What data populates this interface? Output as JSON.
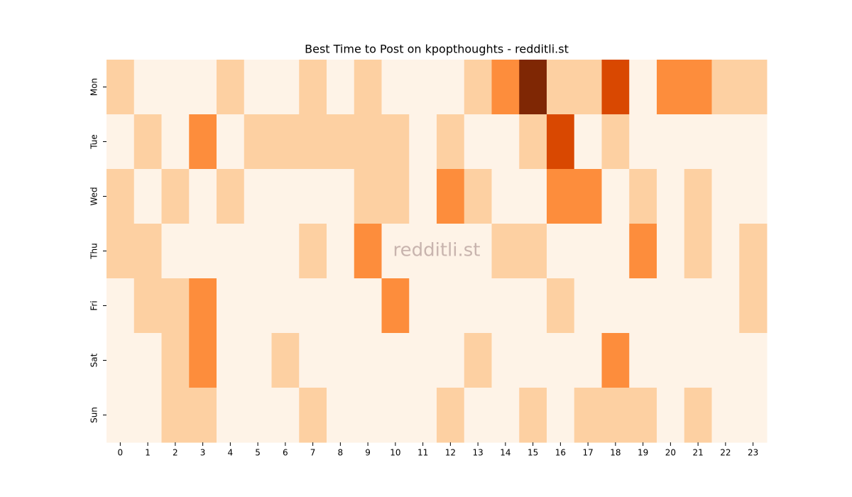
{
  "chart_data": {
    "type": "heatmap",
    "title": "Best Time to Post on kpopthoughts - redditli.st",
    "watermark": "redditli.st",
    "categories": [
      0,
      1,
      2,
      3,
      4,
      5,
      6,
      7,
      8,
      9,
      10,
      11,
      12,
      13,
      14,
      15,
      16,
      17,
      18,
      19,
      20,
      21,
      22,
      23
    ],
    "rows": [
      "Mon",
      "Tue",
      "Wed",
      "Thu",
      "Fri",
      "Sat",
      "Sun"
    ],
    "values": [
      [
        1,
        0,
        0,
        0,
        1,
        0,
        0,
        1,
        0,
        1,
        0,
        0,
        0,
        1,
        2,
        4,
        1,
        1,
        3,
        0,
        2,
        2,
        1,
        1
      ],
      [
        0,
        1,
        0,
        2,
        0,
        1,
        1,
        1,
        1,
        1,
        1,
        0,
        1,
        0,
        0,
        1,
        3,
        0,
        1,
        0,
        0,
        0,
        0,
        0
      ],
      [
        1,
        0,
        1,
        0,
        1,
        0,
        0,
        0,
        0,
        1,
        1,
        0,
        2,
        1,
        0,
        0,
        2,
        2,
        0,
        1,
        0,
        1,
        0,
        0
      ],
      [
        1,
        1,
        0,
        0,
        0,
        0,
        0,
        1,
        0,
        2,
        0,
        0,
        0,
        0,
        1,
        1,
        0,
        0,
        0,
        2,
        0,
        1,
        0,
        1
      ],
      [
        0,
        1,
        1,
        2,
        0,
        0,
        0,
        0,
        0,
        0,
        2,
        0,
        0,
        0,
        0,
        0,
        1,
        0,
        0,
        0,
        0,
        0,
        0,
        1
      ],
      [
        0,
        0,
        1,
        2,
        0,
        0,
        1,
        0,
        0,
        0,
        0,
        0,
        0,
        1,
        0,
        0,
        0,
        0,
        2,
        0,
        0,
        0,
        0,
        0
      ],
      [
        0,
        0,
        1,
        1,
        0,
        0,
        0,
        1,
        0,
        0,
        0,
        0,
        1,
        0,
        0,
        1,
        0,
        1,
        1,
        1,
        0,
        1,
        0,
        0
      ]
    ],
    "colormap": [
      "#fef3e7",
      "#fdd0a2",
      "#fd8d3c",
      "#d94801",
      "#7f2704"
    ]
  }
}
